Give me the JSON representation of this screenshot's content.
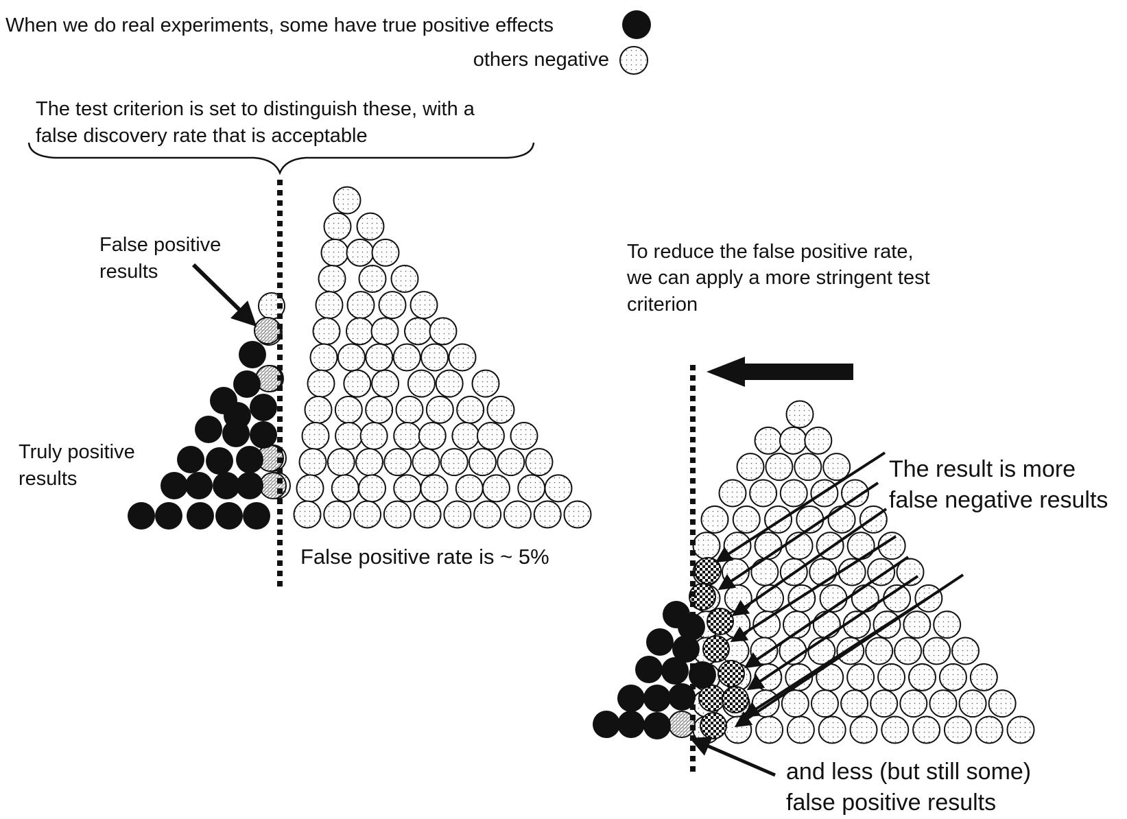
{
  "legend": {
    "positive_text": "When we do real experiments, some have true positive effects",
    "negative_text": "others negative"
  },
  "criterion": {
    "line1": "The test criterion is set to distinguish these, with a",
    "line2": "false discovery rate that is acceptable"
  },
  "left_panel": {
    "false_positive_label": [
      "False positive",
      "results"
    ],
    "truly_positive_label": [
      "Truly positive",
      "results"
    ],
    "rate_label": "False positive rate is ~ 5%"
  },
  "right_panel": {
    "reduce_text": [
      "To reduce the false positive rate,",
      "we can apply a more stringent test",
      "criterion"
    ],
    "result_text": [
      "The result is more",
      "false negative results"
    ],
    "less_text": [
      "and less (but still some)",
      "false positive results"
    ]
  },
  "colors": {
    "ink": "#111111",
    "positive_fill": "#111111",
    "negative_fill": "#ffffff",
    "background": "#ffffff"
  },
  "icons": {
    "positive_marker": "filled-black-circle",
    "negative_marker": "dotted-white-circle",
    "false_positive_marker": "hatched-circle",
    "false_negative_marker": "checkered-circle"
  }
}
